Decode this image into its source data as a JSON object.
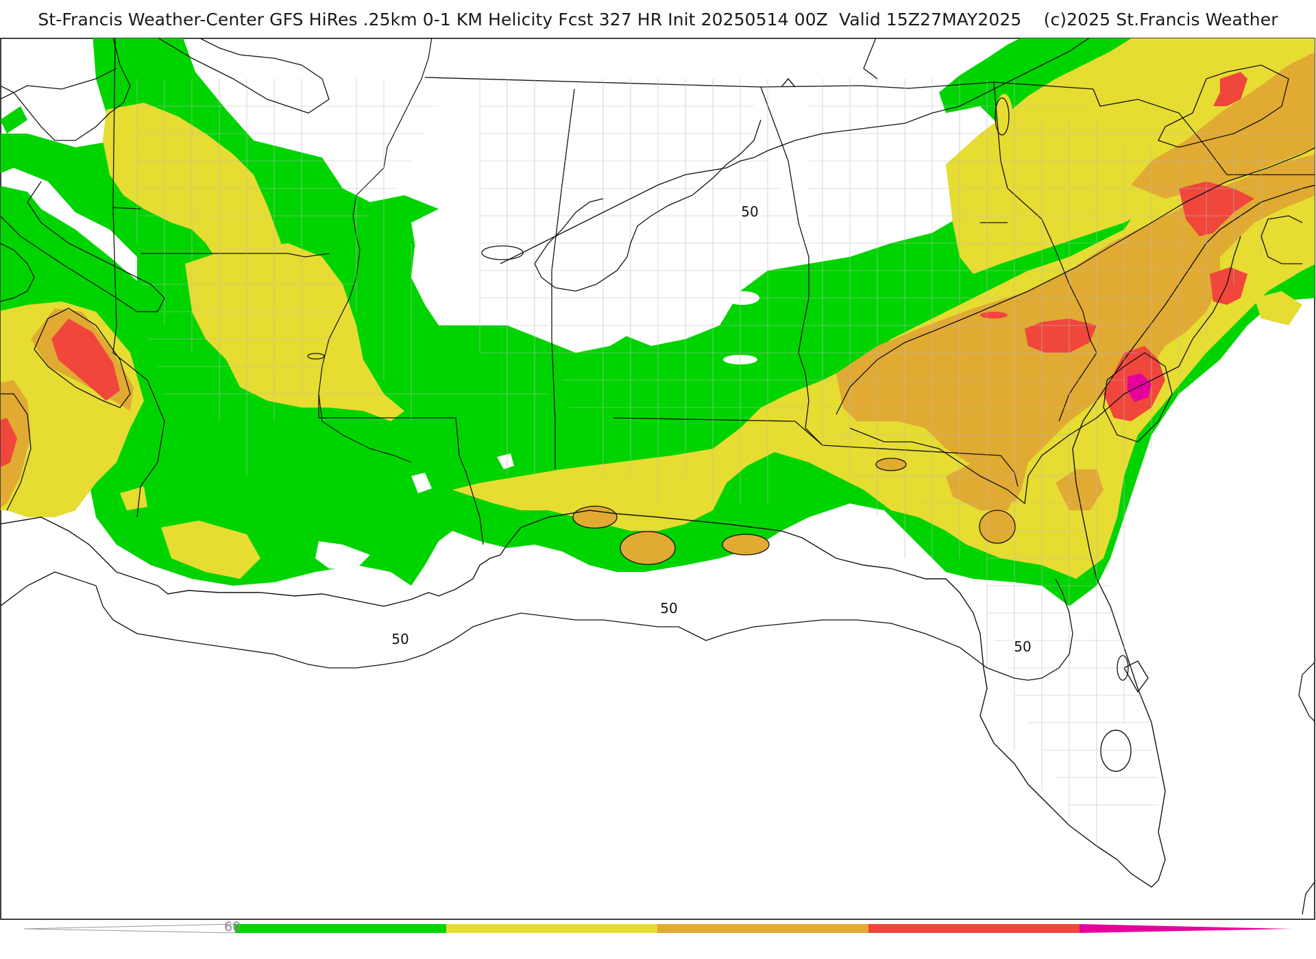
{
  "header": {
    "title": "St-Francis Weather-Center GFS HiRes .25km 0-1 KM Helicity Fcst 327 HR Init 20250514 00Z  Valid 15Z27MAY2025    (c)2025 St.Francis Weather"
  },
  "map": {
    "contour_labels": [
      "50",
      "50",
      "50",
      "50"
    ]
  },
  "colorbar": {
    "tick_label": "60",
    "colors": [
      "#00d400",
      "#e6dc32",
      "#e1aa32",
      "#f0463c",
      "#e6009b"
    ]
  }
}
